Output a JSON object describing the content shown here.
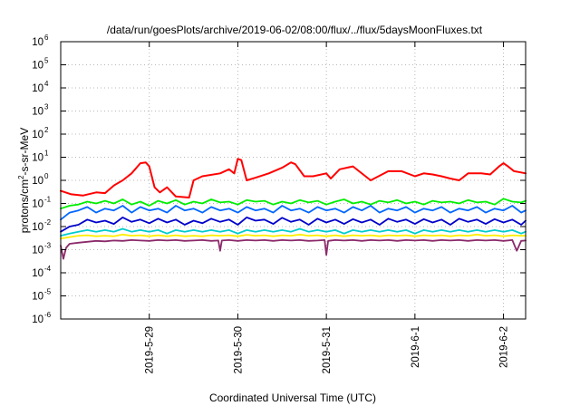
{
  "chart_data": {
    "type": "line",
    "title": "/data/run/goesPlots/archive/2019-06-02/08:00/flux/../flux/5daysMoonFluxes.txt",
    "xlabel": "Coordinated Universal Time (UTC)",
    "ylabel": {
      "prefix": "protons/cm",
      "superscript": "2",
      "suffix": "-s-sr-MeV"
    },
    "x_unit": "days since 2019-05-28 00:00 UTC",
    "xlim": [
      0,
      5.25
    ],
    "ylim_log10": [
      -6,
      6
    ],
    "y_scale": "log",
    "grid": true,
    "x_ticks": [
      {
        "value": 1,
        "label": "2019-5-29"
      },
      {
        "value": 2,
        "label": "2019-5-30"
      },
      {
        "value": 3,
        "label": "2019-5-31"
      },
      {
        "value": 4,
        "label": "2019-6-1"
      },
      {
        "value": 5,
        "label": "2019-6-2"
      }
    ],
    "y_ticks": [
      {
        "exp": -6,
        "base": "10",
        "exponent": "-6"
      },
      {
        "exp": -5,
        "base": "10",
        "exponent": "-5"
      },
      {
        "exp": -4,
        "base": "10",
        "exponent": "-4"
      },
      {
        "exp": -3,
        "base": "10",
        "exponent": "-3"
      },
      {
        "exp": -2,
        "base": "10",
        "exponent": "-2"
      },
      {
        "exp": -1,
        "base": "10",
        "exponent": "-1"
      },
      {
        "exp": 0,
        "base": "10",
        "exponent": "0"
      },
      {
        "exp": 1,
        "base": "10",
        "exponent": "1"
      },
      {
        "exp": 2,
        "base": "10",
        "exponent": "2"
      },
      {
        "exp": 3,
        "base": "10",
        "exponent": "3"
      },
      {
        "exp": 4,
        "base": "10",
        "exponent": "4"
      },
      {
        "exp": 5,
        "base": "10",
        "exponent": "5"
      },
      {
        "exp": 6,
        "base": "10",
        "exponent": "6"
      }
    ],
    "series": [
      {
        "color": "#ff0000",
        "x": [
          0,
          0.12,
          0.25,
          0.4,
          0.5,
          0.6,
          0.7,
          0.8,
          0.9,
          0.96,
          1.0,
          1.06,
          1.12,
          1.2,
          1.3,
          1.45,
          1.5,
          1.6,
          1.8,
          1.9,
          1.96,
          2.0,
          2.04,
          2.1,
          2.2,
          2.35,
          2.5,
          2.6,
          2.65,
          2.75,
          2.85,
          3.0,
          3.05,
          3.15,
          3.3,
          3.5,
          3.7,
          3.85,
          4.0,
          4.1,
          4.2,
          4.3,
          4.4,
          4.5,
          4.6,
          4.75,
          4.85,
          4.95,
          5.0,
          5.05,
          5.12,
          5.2,
          5.25
        ],
        "y": [
          0.35,
          0.25,
          0.22,
          0.3,
          0.28,
          0.6,
          1.0,
          2.0,
          5.5,
          6.0,
          4.0,
          0.5,
          0.3,
          0.5,
          0.2,
          0.18,
          1.0,
          1.5,
          2.0,
          3.0,
          2.0,
          8.5,
          7.5,
          1.0,
          1.3,
          2.0,
          3.5,
          6.0,
          5.0,
          1.5,
          1.5,
          2.0,
          1.2,
          3.0,
          4.0,
          1.0,
          2.5,
          2.5,
          1.5,
          2.0,
          1.8,
          1.5,
          1.2,
          1.0,
          2.0,
          2.0,
          1.8,
          4.0,
          5.5,
          4.0,
          2.5,
          2.2,
          2.0
        ]
      },
      {
        "color": "#00ee00",
        "x": [
          0,
          0.1,
          0.2,
          0.3,
          0.4,
          0.5,
          0.6,
          0.7,
          0.8,
          0.9,
          1.0,
          1.1,
          1.2,
          1.3,
          1.4,
          1.5,
          1.6,
          1.7,
          1.8,
          1.9,
          2.0,
          2.1,
          2.2,
          2.3,
          2.4,
          2.5,
          2.6,
          2.7,
          2.8,
          2.9,
          3.0,
          3.1,
          3.2,
          3.3,
          3.4,
          3.5,
          3.6,
          3.7,
          3.8,
          3.9,
          4.0,
          4.1,
          4.2,
          4.3,
          4.4,
          4.5,
          4.6,
          4.7,
          4.8,
          4.9,
          5.0,
          5.1,
          5.2,
          5.25
        ],
        "y": [
          0.06,
          0.08,
          0.09,
          0.12,
          0.1,
          0.13,
          0.1,
          0.15,
          0.09,
          0.12,
          0.08,
          0.13,
          0.1,
          0.14,
          0.09,
          0.12,
          0.1,
          0.15,
          0.11,
          0.12,
          0.09,
          0.14,
          0.12,
          0.13,
          0.09,
          0.12,
          0.1,
          0.14,
          0.11,
          0.13,
          0.09,
          0.12,
          0.15,
          0.1,
          0.12,
          0.09,
          0.13,
          0.11,
          0.14,
          0.1,
          0.12,
          0.09,
          0.13,
          0.11,
          0.12,
          0.1,
          0.14,
          0.11,
          0.12,
          0.09,
          0.16,
          0.12,
          0.11,
          0.13
        ]
      },
      {
        "color": "#0066ff",
        "x": [
          0,
          0.1,
          0.2,
          0.3,
          0.4,
          0.5,
          0.6,
          0.7,
          0.8,
          0.9,
          1.0,
          1.1,
          1.2,
          1.3,
          1.4,
          1.5,
          1.6,
          1.7,
          1.8,
          1.9,
          2.0,
          2.1,
          2.2,
          2.3,
          2.4,
          2.5,
          2.6,
          2.7,
          2.8,
          2.9,
          3.0,
          3.1,
          3.2,
          3.3,
          3.4,
          3.5,
          3.6,
          3.7,
          3.8,
          3.9,
          4.0,
          4.1,
          4.2,
          4.3,
          4.4,
          4.5,
          4.6,
          4.7,
          4.8,
          4.9,
          5.0,
          5.1,
          5.2,
          5.25
        ],
        "y": [
          0.02,
          0.04,
          0.05,
          0.07,
          0.04,
          0.06,
          0.05,
          0.08,
          0.04,
          0.07,
          0.05,
          0.06,
          0.04,
          0.08,
          0.05,
          0.06,
          0.04,
          0.07,
          0.05,
          0.06,
          0.04,
          0.07,
          0.05,
          0.06,
          0.04,
          0.08,
          0.05,
          0.06,
          0.04,
          0.07,
          0.05,
          0.06,
          0.04,
          0.07,
          0.05,
          0.08,
          0.04,
          0.06,
          0.05,
          0.07,
          0.04,
          0.06,
          0.05,
          0.07,
          0.04,
          0.06,
          0.05,
          0.07,
          0.04,
          0.06,
          0.05,
          0.08,
          0.04,
          0.05
        ]
      },
      {
        "color": "#0000cc",
        "x": [
          0,
          0.1,
          0.2,
          0.3,
          0.4,
          0.5,
          0.6,
          0.7,
          0.8,
          0.9,
          1.0,
          1.1,
          1.2,
          1.3,
          1.4,
          1.5,
          1.6,
          1.7,
          1.8,
          1.9,
          2.0,
          2.1,
          2.2,
          2.3,
          2.4,
          2.5,
          2.6,
          2.7,
          2.8,
          2.9,
          3.0,
          3.1,
          3.2,
          3.3,
          3.4,
          3.5,
          3.6,
          3.7,
          3.8,
          3.9,
          4.0,
          4.1,
          4.2,
          4.3,
          4.4,
          4.5,
          4.6,
          4.7,
          4.8,
          4.9,
          5.0,
          5.1,
          5.2,
          5.25
        ],
        "y": [
          0.006,
          0.01,
          0.012,
          0.02,
          0.015,
          0.018,
          0.013,
          0.025,
          0.016,
          0.02,
          0.014,
          0.022,
          0.015,
          0.02,
          0.012,
          0.018,
          0.014,
          0.022,
          0.016,
          0.02,
          0.012,
          0.025,
          0.018,
          0.02,
          0.013,
          0.024,
          0.016,
          0.02,
          0.012,
          0.022,
          0.015,
          0.02,
          0.013,
          0.021,
          0.015,
          0.02,
          0.012,
          0.022,
          0.016,
          0.02,
          0.013,
          0.021,
          0.015,
          0.02,
          0.012,
          0.022,
          0.016,
          0.02,
          0.013,
          0.021,
          0.015,
          0.02,
          0.012,
          0.018
        ]
      },
      {
        "color": "#00cccc",
        "x": [
          0,
          0.1,
          0.2,
          0.3,
          0.4,
          0.5,
          0.6,
          0.7,
          0.8,
          0.9,
          1.0,
          1.1,
          1.2,
          1.3,
          1.4,
          1.5,
          1.6,
          1.7,
          1.8,
          1.9,
          2.0,
          2.1,
          2.2,
          2.3,
          2.4,
          2.5,
          2.6,
          2.7,
          2.8,
          2.9,
          3.0,
          3.1,
          3.2,
          3.3,
          3.4,
          3.5,
          3.6,
          3.7,
          3.8,
          3.9,
          4.0,
          4.1,
          4.2,
          4.3,
          4.4,
          4.5,
          4.6,
          4.7,
          4.8,
          4.9,
          5.0,
          5.1,
          5.2,
          5.25
        ],
        "y": [
          0.004,
          0.005,
          0.006,
          0.007,
          0.006,
          0.007,
          0.006,
          0.008,
          0.006,
          0.007,
          0.006,
          0.007,
          0.005,
          0.007,
          0.006,
          0.007,
          0.006,
          0.007,
          0.006,
          0.007,
          0.005,
          0.007,
          0.006,
          0.007,
          0.006,
          0.007,
          0.006,
          0.008,
          0.006,
          0.007,
          0.006,
          0.007,
          0.005,
          0.007,
          0.006,
          0.007,
          0.006,
          0.007,
          0.006,
          0.007,
          0.005,
          0.007,
          0.006,
          0.007,
          0.006,
          0.007,
          0.006,
          0.007,
          0.006,
          0.007,
          0.006,
          0.007,
          0.005,
          0.006
        ]
      },
      {
        "color": "#ffee00",
        "x": [
          0,
          0.1,
          0.2,
          0.3,
          0.4,
          0.5,
          0.6,
          0.7,
          0.8,
          0.9,
          1.0,
          1.1,
          1.2,
          1.3,
          1.4,
          1.5,
          1.6,
          1.7,
          1.8,
          1.9,
          2.0,
          2.1,
          2.2,
          2.3,
          2.4,
          2.5,
          2.6,
          2.7,
          2.8,
          2.9,
          3.0,
          3.1,
          3.2,
          3.3,
          3.4,
          3.5,
          3.6,
          3.7,
          3.8,
          3.9,
          4.0,
          4.1,
          4.2,
          4.3,
          4.4,
          4.5,
          4.6,
          4.7,
          4.8,
          4.9,
          5.0,
          5.1,
          5.2,
          5.25
        ],
        "y": [
          0.003,
          0.0035,
          0.004,
          0.0042,
          0.0038,
          0.004,
          0.0038,
          0.0045,
          0.004,
          0.0042,
          0.0038,
          0.0042,
          0.0038,
          0.0042,
          0.0038,
          0.004,
          0.0038,
          0.0042,
          0.004,
          0.0042,
          0.0038,
          0.0044,
          0.004,
          0.0042,
          0.0038,
          0.0042,
          0.004,
          0.0045,
          0.004,
          0.0042,
          0.0038,
          0.0042,
          0.0038,
          0.0042,
          0.004,
          0.0042,
          0.0038,
          0.0042,
          0.004,
          0.0042,
          0.0038,
          0.0042,
          0.004,
          0.0042,
          0.0038,
          0.0042,
          0.004,
          0.0045,
          0.004,
          0.0042,
          0.0038,
          0.0042,
          0.004,
          0.004
        ]
      },
      {
        "color": "#8b2a6a",
        "x": [
          0,
          0.03,
          0.06,
          0.1,
          0.2,
          0.3,
          0.4,
          0.5,
          0.6,
          0.7,
          0.8,
          0.9,
          1.0,
          1.1,
          1.2,
          1.3,
          1.4,
          1.5,
          1.6,
          1.7,
          1.78,
          1.8,
          1.82,
          1.9,
          2.0,
          2.1,
          2.2,
          2.3,
          2.4,
          2.5,
          2.6,
          2.7,
          2.8,
          2.9,
          2.98,
          3.0,
          3.02,
          3.1,
          3.2,
          3.3,
          3.4,
          3.5,
          3.6,
          3.7,
          3.8,
          3.9,
          4.0,
          4.1,
          4.2,
          4.3,
          4.4,
          4.5,
          4.6,
          4.7,
          4.8,
          4.9,
          5.0,
          5.1,
          5.15,
          5.2,
          5.25
        ],
        "y": [
          0.0015,
          0.0004,
          0.0012,
          0.0018,
          0.002,
          0.0022,
          0.0024,
          0.0023,
          0.0025,
          0.0024,
          0.0026,
          0.0025,
          0.0024,
          0.0026,
          0.0025,
          0.0026,
          0.0024,
          0.0025,
          0.0026,
          0.0024,
          0.0025,
          0.0009,
          0.0025,
          0.0026,
          0.0024,
          0.0026,
          0.0025,
          0.0026,
          0.0024,
          0.0026,
          0.0025,
          0.0026,
          0.0024,
          0.0025,
          0.0026,
          0.0006,
          0.0024,
          0.0026,
          0.0025,
          0.0026,
          0.0024,
          0.0026,
          0.0025,
          0.0026,
          0.0024,
          0.0026,
          0.0025,
          0.0026,
          0.0024,
          0.0026,
          0.0025,
          0.0026,
          0.0024,
          0.0026,
          0.0025,
          0.0026,
          0.0024,
          0.0026,
          0.0009,
          0.0024,
          0.0025
        ]
      }
    ]
  }
}
